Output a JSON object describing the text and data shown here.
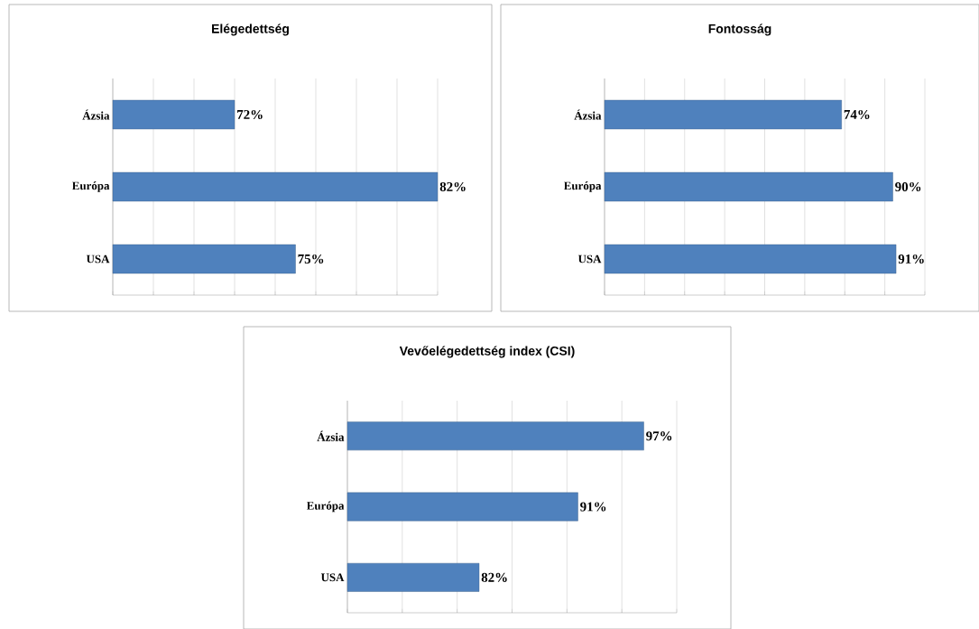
{
  "chart_data": [
    {
      "type": "bar",
      "orientation": "horizontal",
      "title": "Elégedettség",
      "categories": [
        "Ázsia",
        "Európa",
        "USA"
      ],
      "values": [
        72,
        82,
        75
      ],
      "value_labels": [
        "72%",
        "82%",
        "75%"
      ],
      "color": "#4f81bd",
      "xlim": [
        66,
        82
      ],
      "xticks": [
        {
          "value": 66,
          "label": null
        },
        {
          "value": 68,
          "label": null
        },
        {
          "value": 70,
          "label": null
        },
        {
          "value": 72,
          "label": null
        },
        {
          "value": 74,
          "label": null
        },
        {
          "value": 76,
          "label": null
        },
        {
          "value": 78,
          "label": null
        },
        {
          "value": 80,
          "label": null
        },
        {
          "value": 82,
          "label": null
        }
      ],
      "grid": "x",
      "tick_labels": "y"
    },
    {
      "type": "bar",
      "orientation": "horizontal",
      "title": "Fontosság",
      "categories": [
        "Ázsia",
        "Európa",
        "USA"
      ],
      "values": [
        74,
        90,
        91
      ],
      "value_labels": [
        "74%",
        "90%",
        "91%"
      ],
      "color": "#4f81bd",
      "xlim": [
        0,
        100
      ],
      "xticks": [
        {
          "value": 0,
          "label": null
        },
        {
          "value": 12.5,
          "label": null
        },
        {
          "value": 25,
          "label": null
        },
        {
          "value": 37.5,
          "label": null
        },
        {
          "value": 50,
          "label": null
        },
        {
          "value": 62.5,
          "label": null
        },
        {
          "value": 75,
          "label": null
        },
        {
          "value": 87.5,
          "label": null
        },
        {
          "value": 100,
          "label": null
        }
      ],
      "grid": "x",
      "tick_labels": "y"
    },
    {
      "type": "bar",
      "orientation": "horizontal",
      "title": "Vevőelégedettség index (CSI)",
      "categories": [
        "Ázsia",
        "Európa",
        "USA"
      ],
      "values": [
        97,
        91,
        82
      ],
      "value_labels": [
        "97%",
        "91%",
        "82%"
      ],
      "color": "#4f81bd",
      "xlim": [
        70,
        100
      ],
      "xticks": [
        {
          "value": 70,
          "label": null
        },
        {
          "value": 75,
          "label": null
        },
        {
          "value": 80,
          "label": null
        },
        {
          "value": 85,
          "label": null
        },
        {
          "value": 90,
          "label": null
        },
        {
          "value": 95,
          "label": null
        },
        {
          "value": 100,
          "label": null
        }
      ],
      "grid": "x",
      "tick_labels": "y"
    }
  ]
}
